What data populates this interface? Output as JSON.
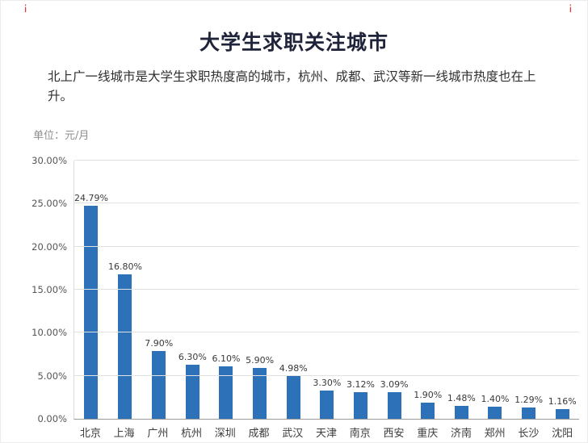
{
  "page": {
    "title": "大学生求职关注城市",
    "subtitle": "北上广一线城市是大学生求职热度高的城市，杭州、成都、武汉等新一线城市热度也在上升。",
    "unit_label": "单位：元/月",
    "corner_mark_left": "¡",
    "corner_mark_right": "¡",
    "colors": {
      "bar": "#2d72b8",
      "accent_red": "#e03a3a",
      "title": "#20243a"
    }
  },
  "chart_data": {
    "type": "bar",
    "title": "大学生求职关注城市",
    "xlabel": "",
    "ylabel": "单位：元/月",
    "categories": [
      "北京",
      "上海",
      "广州",
      "杭州",
      "深圳",
      "成都",
      "武汉",
      "天津",
      "南京",
      "西安",
      "重庆",
      "济南",
      "郑州",
      "长沙",
      "沈阳"
    ],
    "values": [
      24.79,
      16.8,
      7.9,
      6.3,
      6.1,
      5.9,
      4.98,
      3.3,
      3.12,
      3.09,
      1.9,
      1.48,
      1.4,
      1.29,
      1.16
    ],
    "value_labels": [
      "24.79%",
      "16.80%",
      "7.90%",
      "6.30%",
      "6.10%",
      "5.90%",
      "4.98%",
      "3.30%",
      "3.12%",
      "3.09%",
      "1.90%",
      "1.48%",
      "1.40%",
      "1.29%",
      "1.16%"
    ],
    "ylim": [
      0,
      30
    ],
    "yticks": [
      "0.00%",
      "5.00%",
      "10.00%",
      "15.00%",
      "20.00%",
      "25.00%",
      "30.00%"
    ],
    "grid": true,
    "legend": "none",
    "bar_color": "#2d72b8"
  }
}
